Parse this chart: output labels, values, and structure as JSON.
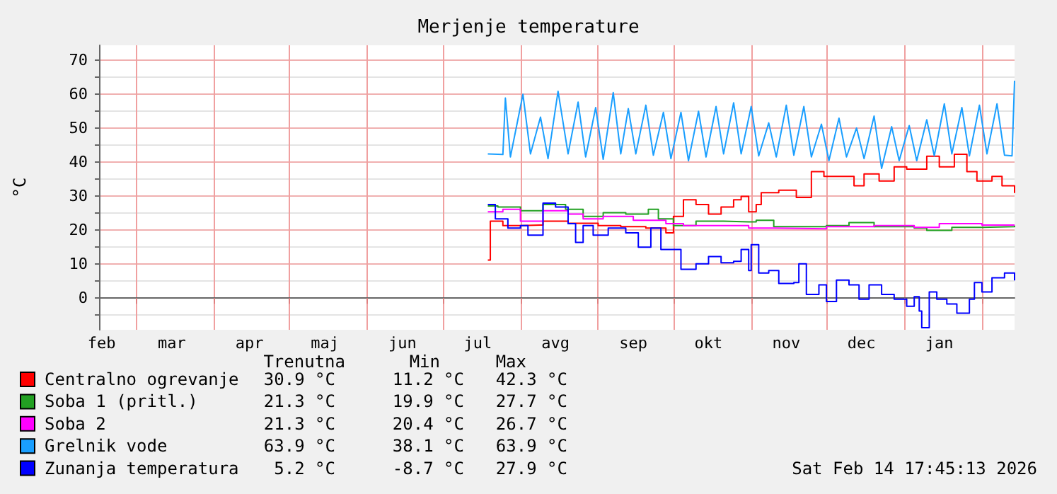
{
  "chart_data": {
    "type": "step",
    "title": "Merjenje temperature",
    "ylabel": "°C",
    "xlim": [
      "2025-02-14",
      "2026-02-14"
    ],
    "xticks": [
      {
        "value": "2025-02-15",
        "label": "feb"
      },
      {
        "value": "2025-03-01",
        "label": null
      },
      {
        "value": "2025-03-15",
        "label": "mar"
      },
      {
        "value": "2025-04-01",
        "label": null
      },
      {
        "value": "2025-04-15",
        "label": "apr"
      },
      {
        "value": "2025-05-01",
        "label": null
      },
      {
        "value": "2025-05-15",
        "label": "maj"
      },
      {
        "value": "2025-06-01",
        "label": null
      },
      {
        "value": "2025-06-15",
        "label": "jun"
      },
      {
        "value": "2025-07-01",
        "label": null
      },
      {
        "value": "2025-07-15",
        "label": "jul"
      },
      {
        "value": "2025-08-01",
        "label": null
      },
      {
        "value": "2025-08-15",
        "label": "avg"
      },
      {
        "value": "2025-09-01",
        "label": null
      },
      {
        "value": "2025-09-15",
        "label": "sep"
      },
      {
        "value": "2025-10-01",
        "label": null
      },
      {
        "value": "2025-10-15",
        "label": "okt"
      },
      {
        "value": "2025-11-01",
        "label": null
      },
      {
        "value": "2025-11-15",
        "label": "nov"
      },
      {
        "value": "2025-12-01",
        "label": null
      },
      {
        "value": "2025-12-15",
        "label": "dec"
      },
      {
        "value": "2026-01-01",
        "label": null
      },
      {
        "value": "2026-01-15",
        "label": "jan"
      },
      {
        "value": "2026-02-01",
        "label": null
      }
    ],
    "ylim": [
      -9.3,
      74.3
    ],
    "yticks": [
      {
        "value": -5,
        "label": null
      },
      0,
      {
        "value": 5,
        "label": null
      },
      10,
      {
        "value": 15,
        "label": null
      },
      20,
      {
        "value": 25,
        "label": null
      },
      30,
      {
        "value": 35,
        "label": null
      },
      40,
      {
        "value": 45,
        "label": null
      },
      50,
      {
        "value": 55,
        "label": null
      },
      60,
      {
        "value": 65,
        "label": null
      },
      70
    ],
    "grid": true,
    "legend": "bottom left",
    "series": [
      {
        "name": "Centralno ogrevanje",
        "color": "#ff0000",
        "x": [
          "2025-07-19",
          "2025-07-20",
          "2025-07-25",
          "2025-08-01",
          "2025-08-10",
          "2025-08-20",
          "2025-09-01",
          "2025-09-10",
          "2025-09-20",
          "2025-09-28",
          "2025-10-01",
          "2025-10-05",
          "2025-10-10",
          "2025-10-15",
          "2025-10-20",
          "2025-10-25",
          "2025-10-28",
          "2025-10-31",
          "2025-11-03",
          "2025-11-05",
          "2025-11-12",
          "2025-11-19",
          "2025-11-25",
          "2025-11-30",
          "2025-12-09",
          "2025-12-12",
          "2025-12-16",
          "2025-12-22",
          "2025-12-28",
          "2026-01-02",
          "2026-01-10",
          "2026-01-15",
          "2026-01-21",
          "2026-01-26",
          "2026-01-30",
          "2026-02-05",
          "2026-02-09",
          "2026-02-14"
        ],
        "values": [
          11.2,
          22.6,
          21.3,
          21.5,
          22.6,
          22,
          21.3,
          21,
          20.6,
          19.2,
          24,
          28.9,
          27.5,
          24.7,
          26.8,
          28.9,
          29.9,
          25.4,
          27.5,
          31,
          31.7,
          29.6,
          37.2,
          35.8,
          35.8,
          33,
          36.5,
          34.4,
          38.6,
          37.9,
          41.7,
          38.6,
          42.3,
          37.2,
          34.4,
          35.8,
          33,
          30.9
        ]
      },
      {
        "name": "Soba 1 (pritl.)",
        "color": "#22a022",
        "x": [
          "2025-07-19",
          "2025-07-23",
          "2025-08-01",
          "2025-08-10",
          "2025-08-19",
          "2025-08-26",
          "2025-09-03",
          "2025-09-12",
          "2025-09-21",
          "2025-09-25",
          "2025-10-01",
          "2025-10-10",
          "2025-10-21",
          "2025-10-31",
          "2025-11-03",
          "2025-11-10",
          "2025-12-01",
          "2025-12-10",
          "2025-12-20",
          "2026-01-05",
          "2026-01-10",
          "2026-01-20",
          "2026-02-01",
          "2026-02-14"
        ],
        "values": [
          27.1,
          26.8,
          25.7,
          27.5,
          26.1,
          24,
          25.1,
          24.7,
          26.1,
          23.3,
          21.3,
          22.6,
          22.4,
          22.4,
          22.9,
          21,
          21.3,
          22.2,
          21,
          20.6,
          19.9,
          20.8,
          21,
          21.3
        ]
      },
      {
        "name": "Soba 2",
        "color": "#ff00ff",
        "x": [
          "2025-07-19",
          "2025-07-25",
          "2025-08-01",
          "2025-08-10",
          "2025-08-20",
          "2025-08-26",
          "2025-09-03",
          "2025-09-15",
          "2025-09-28",
          "2025-10-05",
          "2025-10-20",
          "2025-10-31",
          "2025-11-10",
          "2025-12-01",
          "2025-12-20",
          "2026-01-05",
          "2026-01-15",
          "2026-02-01",
          "2026-02-14"
        ],
        "values": [
          25.4,
          26.1,
          22.6,
          25.7,
          24.7,
          23.3,
          24,
          22.9,
          21.9,
          21.3,
          21.3,
          20.6,
          20.4,
          21,
          21.3,
          20.8,
          21.9,
          21.5,
          21.3
        ]
      },
      {
        "name": "Grelnik vode",
        "color": "#1a9fff",
        "type": "line",
        "x": [
          "2025-07-19",
          "2025-07-25",
          "2025-07-26",
          "2025-07-28",
          "2025-08-02",
          "2025-08-05",
          "2025-08-09",
          "2025-08-12",
          "2025-08-16",
          "2025-08-20",
          "2025-08-24",
          "2025-08-27",
          "2025-08-31",
          "2025-09-03",
          "2025-09-07",
          "2025-09-10",
          "2025-09-13",
          "2025-09-16",
          "2025-09-20",
          "2025-09-23",
          "2025-09-27",
          "2025-09-30",
          "2025-10-04",
          "2025-10-07",
          "2025-10-11",
          "2025-10-14",
          "2025-10-18",
          "2025-10-21",
          "2025-10-25",
          "2025-10-28",
          "2025-11-01",
          "2025-11-04",
          "2025-11-08",
          "2025-11-11",
          "2025-11-15",
          "2025-11-18",
          "2025-11-22",
          "2025-11-25",
          "2025-11-29",
          "2025-12-02",
          "2025-12-06",
          "2025-12-09",
          "2025-12-13",
          "2025-12-16",
          "2025-12-20",
          "2025-12-23",
          "2025-12-27",
          "2025-12-30",
          "2026-01-03",
          "2026-01-06",
          "2026-01-10",
          "2026-01-13",
          "2026-01-17",
          "2026-01-20",
          "2026-01-24",
          "2026-01-27",
          "2026-01-31",
          "2026-02-03",
          "2026-02-07",
          "2026-02-10",
          "2026-02-13",
          "2026-02-14"
        ],
        "values": [
          42.4,
          42.2,
          58.8,
          41.5,
          59.9,
          42.4,
          53.2,
          41,
          60.8,
          42.4,
          57.6,
          41.5,
          56,
          40.8,
          60.4,
          42.4,
          55.7,
          42.4,
          56.7,
          42,
          54.6,
          41,
          54.6,
          40.4,
          54.9,
          41.5,
          56.3,
          42.4,
          57.4,
          42.4,
          56.3,
          41.8,
          51.5,
          41.5,
          56.7,
          42,
          56.3,
          41.5,
          51.1,
          40.4,
          52.9,
          41.5,
          50,
          41,
          53.5,
          38.1,
          50.4,
          40.4,
          50.7,
          40.4,
          52.4,
          41.8,
          57.1,
          42.4,
          56,
          41.8,
          56.7,
          42.4,
          57.1,
          42,
          41.8,
          63.9
        ]
      },
      {
        "name": "Zunanja temperatura",
        "color": "#0000ff",
        "x": [
          "2025-07-19",
          "2025-07-22",
          "2025-07-27",
          "2025-08-01",
          "2025-08-04",
          "2025-08-10",
          "2025-08-15",
          "2025-08-20",
          "2025-08-23",
          "2025-08-26",
          "2025-08-30",
          "2025-09-05",
          "2025-09-12",
          "2025-09-17",
          "2025-09-22",
          "2025-09-26",
          "2025-10-01",
          "2025-10-04",
          "2025-10-10",
          "2025-10-15",
          "2025-10-20",
          "2025-10-25",
          "2025-10-28",
          "2025-10-31",
          "2025-11-01",
          "2025-11-04",
          "2025-11-08",
          "2025-11-12",
          "2025-11-18",
          "2025-11-20",
          "2025-11-23",
          "2025-11-28",
          "2025-12-01",
          "2025-12-05",
          "2025-12-10",
          "2025-12-14",
          "2025-12-18",
          "2025-12-23",
          "2025-12-28",
          "2026-01-02",
          "2026-01-05",
          "2026-01-07",
          "2026-01-08",
          "2026-01-11",
          "2026-01-14",
          "2026-01-18",
          "2026-01-22",
          "2026-01-27",
          "2026-01-29",
          "2026-02-01",
          "2026-02-05",
          "2026-02-10",
          "2026-02-14"
        ],
        "values": [
          27.5,
          23.3,
          20.6,
          21.3,
          18.5,
          27.9,
          26.8,
          21.9,
          16.4,
          21.3,
          18.5,
          20.6,
          19.2,
          15,
          20.6,
          14.3,
          14.3,
          8.5,
          10.1,
          12.2,
          10.4,
          10.8,
          14.3,
          8.1,
          15.7,
          7.4,
          8.1,
          4.3,
          4.6,
          10.1,
          1.1,
          3.9,
          -1,
          5.3,
          3.9,
          -0.3,
          3.9,
          1.1,
          -0.3,
          -2.4,
          0.4,
          -3.8,
          -8.7,
          1.8,
          -0.3,
          -1.7,
          -4.4,
          -0.3,
          4.6,
          1.8,
          6,
          7.4,
          5.2
        ]
      }
    ],
    "annotations": [
      "Trenutna",
      "Min",
      "Max",
      "30.9 °C",
      "11.2 °C",
      "42.3 °C",
      "21.3 °C",
      "19.9 °C",
      "27.7 °C",
      "21.3 °C",
      "20.4 °C",
      "26.7 °C",
      "63.9 °C",
      "38.1 °C",
      "63.9 °C",
      "5.2 °C",
      "-8.7 °C",
      "27.9 °C",
      "Sat Feb 14 17:45:13 2026"
    ]
  }
}
